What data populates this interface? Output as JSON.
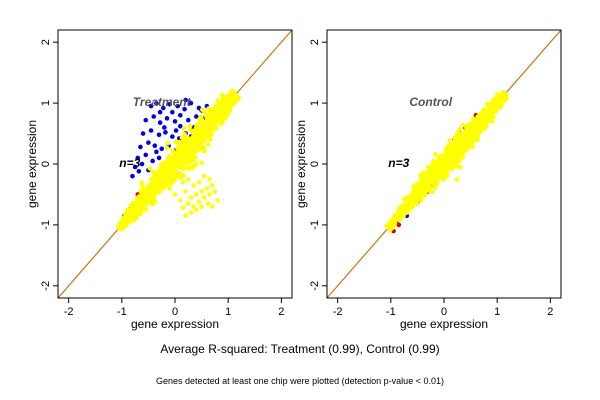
{
  "caption": "Average R-squared: Treatment (0.99), Control (0.99)",
  "footnote": "Genes detected at least one chip were plotted (detection p-value < 0.01)",
  "colors": {
    "diagonal": "#d07010",
    "points_primary": "#ffff00",
    "points_up": "#0000ee",
    "points_down": "#dd0000",
    "frame": "#000000"
  },
  "chart_data": [
    {
      "type": "scatter",
      "title": "Treatment",
      "annotation": "n=3",
      "xlabel": "gene expression",
      "ylabel": "gene expression",
      "xlim": [
        -2.2,
        2.2
      ],
      "ylim": [
        -2.2,
        2.2
      ],
      "xticks": [
        -2,
        -1,
        0,
        1,
        2
      ],
      "yticks": [
        -2,
        -1,
        0,
        1,
        2
      ],
      "diagonal": true,
      "grid": false,
      "main_cloud": {
        "from": [
          -1.05,
          -1.05
        ],
        "to": [
          1.15,
          1.15
        ],
        "spread": 0.12
      },
      "series": [
        {
          "color": "blue",
          "points": [
            [
              -0.45,
              0.95
            ],
            [
              -0.35,
              1.0
            ],
            [
              -0.22,
              0.92
            ],
            [
              -0.1,
              0.98
            ],
            [
              0.05,
              0.95
            ],
            [
              0.18,
              0.9
            ],
            [
              0.3,
              1.0
            ],
            [
              0.45,
              0.92
            ],
            [
              -0.55,
              0.72
            ],
            [
              -0.4,
              0.78
            ],
            [
              -0.28,
              0.68
            ],
            [
              -0.15,
              0.75
            ],
            [
              0.0,
              0.7
            ],
            [
              0.1,
              0.62
            ],
            [
              0.25,
              0.72
            ],
            [
              0.35,
              0.6
            ],
            [
              -0.6,
              0.5
            ],
            [
              -0.45,
              0.55
            ],
            [
              -0.3,
              0.48
            ],
            [
              -0.18,
              0.52
            ],
            [
              -0.05,
              0.45
            ],
            [
              0.08,
              0.42
            ],
            [
              0.2,
              0.5
            ],
            [
              -0.65,
              0.28
            ],
            [
              -0.5,
              0.35
            ],
            [
              -0.38,
              0.3
            ],
            [
              -0.25,
              0.25
            ],
            [
              -0.12,
              0.3
            ],
            [
              0.0,
              0.22
            ],
            [
              -0.7,
              0.1
            ],
            [
              -0.55,
              0.15
            ],
            [
              -0.42,
              0.05
            ],
            [
              -0.3,
              0.1
            ],
            [
              -0.2,
              0.02
            ],
            [
              -0.75,
              -0.05
            ],
            [
              -0.62,
              0.0
            ],
            [
              -0.5,
              -0.1
            ],
            [
              0.15,
              0.35
            ],
            [
              0.3,
              0.45
            ],
            [
              0.4,
              0.78
            ],
            [
              0.5,
              0.88
            ],
            [
              -0.05,
              0.85
            ],
            [
              -0.2,
              0.6
            ],
            [
              0.1,
              0.8
            ],
            [
              0.6,
              0.95
            ],
            [
              0.55,
              0.75
            ],
            [
              -0.35,
              0.2
            ],
            [
              -0.8,
              -0.2
            ],
            [
              -0.68,
              -0.12
            ],
            [
              0.2,
              1.05
            ],
            [
              -0.28,
              0.85
            ],
            [
              0.02,
              0.55
            ]
          ]
        },
        {
          "color": "yellow",
          "points": [
            [
              0.05,
              -0.2
            ],
            [
              0.15,
              -0.3
            ],
            [
              0.25,
              -0.25
            ],
            [
              0.35,
              -0.35
            ],
            [
              0.45,
              -0.3
            ],
            [
              0.55,
              -0.2
            ],
            [
              0.65,
              -0.25
            ],
            [
              0.2,
              -0.45
            ],
            [
              0.3,
              -0.55
            ],
            [
              0.4,
              -0.5
            ],
            [
              0.5,
              -0.45
            ],
            [
              0.6,
              -0.4
            ],
            [
              0.7,
              -0.35
            ],
            [
              0.1,
              -0.6
            ],
            [
              0.25,
              -0.65
            ],
            [
              0.35,
              -0.7
            ],
            [
              0.45,
              -0.62
            ],
            [
              0.55,
              -0.55
            ],
            [
              0.65,
              -0.5
            ],
            [
              0.75,
              -0.45
            ],
            [
              0.3,
              -0.8
            ],
            [
              0.4,
              -0.75
            ],
            [
              0.0,
              -0.5
            ],
            [
              -0.1,
              -0.4
            ],
            [
              0.5,
              -0.7
            ],
            [
              0.62,
              -0.65
            ],
            [
              0.2,
              -0.85
            ],
            [
              0.8,
              -0.6
            ],
            [
              0.7,
              -0.7
            ],
            [
              0.15,
              -0.72
            ]
          ]
        },
        {
          "color": "red",
          "points": [
            [
              -0.95,
              -0.85
            ],
            [
              -0.85,
              -0.75
            ],
            [
              -0.75,
              -0.65
            ],
            [
              -0.65,
              -0.55
            ],
            [
              -0.9,
              -0.95
            ],
            [
              -0.8,
              -0.7
            ],
            [
              0.85,
              0.95
            ],
            [
              0.95,
              1.05
            ],
            [
              0.75,
              0.88
            ],
            [
              0.9,
              0.98
            ],
            [
              -0.7,
              -0.5
            ],
            [
              0.8,
              0.92
            ]
          ]
        }
      ]
    },
    {
      "type": "scatter",
      "title": "Control",
      "annotation": "n=3",
      "xlabel": "gene expression",
      "ylabel": "gene expression",
      "xlim": [
        -2.2,
        2.2
      ],
      "ylim": [
        -2.2,
        2.2
      ],
      "xticks": [
        -2,
        -1,
        0,
        1,
        2
      ],
      "yticks": [
        -2,
        -1,
        0,
        1,
        2
      ],
      "diagonal": true,
      "grid": false,
      "main_cloud": {
        "from": [
          -1.05,
          -1.05
        ],
        "to": [
          1.15,
          1.15
        ],
        "spread": 0.09
      },
      "series": [
        {
          "color": "blue",
          "points": [
            [
              -0.6,
              -0.7
            ],
            [
              -0.5,
              -0.62
            ],
            [
              -0.4,
              -0.5
            ],
            [
              0.2,
              0.05
            ],
            [
              0.3,
              0.15
            ],
            [
              0.4,
              0.25
            ],
            [
              -0.7,
              -0.85
            ],
            [
              0.5,
              0.35
            ],
            [
              -0.3,
              -0.45
            ],
            [
              0.55,
              0.45
            ],
            [
              0.1,
              -0.05
            ],
            [
              -0.2,
              -0.35
            ]
          ]
        },
        {
          "color": "red",
          "points": [
            [
              -0.95,
              -1.1
            ],
            [
              -0.85,
              -1.0
            ],
            [
              -0.9,
              -0.95
            ],
            [
              0.2,
              0.4
            ],
            [
              0.3,
              0.5
            ],
            [
              -0.3,
              -0.15
            ],
            [
              0.4,
              0.6
            ],
            [
              -0.2,
              -0.05
            ],
            [
              0.6,
              0.8
            ]
          ]
        },
        {
          "color": "yellow",
          "points": [
            [
              -0.4,
              -0.15
            ],
            [
              -0.3,
              -0.05
            ],
            [
              -0.55,
              -0.35
            ],
            [
              -0.2,
              0.05
            ],
            [
              0.1,
              0.3
            ],
            [
              0.2,
              0.0
            ],
            [
              0.35,
              0.15
            ],
            [
              0.5,
              0.3
            ]
          ]
        }
      ]
    }
  ]
}
